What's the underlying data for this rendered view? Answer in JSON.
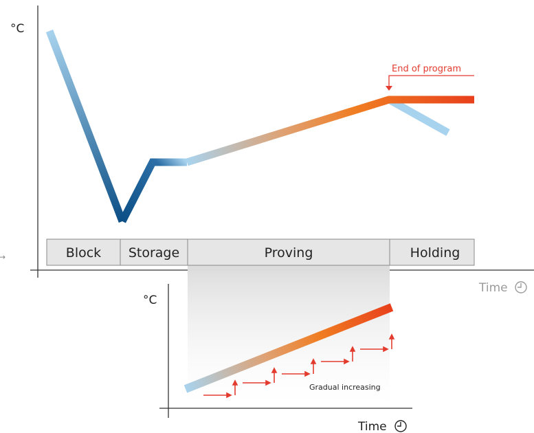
{
  "main_chart": {
    "y_unit": "°C",
    "x_label": "Time",
    "end_of_program": "End of program",
    "phases": [
      {
        "id": "block",
        "label": "Block"
      },
      {
        "id": "storage",
        "label": "Storage"
      },
      {
        "id": "proving",
        "label": "Proving"
      },
      {
        "id": "holding",
        "label": "Holding"
      }
    ]
  },
  "inset_chart": {
    "y_unit": "°C",
    "x_label": "Time",
    "note": "Gradual increasing"
  },
  "colors": {
    "cold_light": "#a8d3ee",
    "cold_dark": "#0c4f86",
    "warm": "#f07d22",
    "hot": "#e8401c",
    "annotation_red": "#e33b2e",
    "axis": "#333333",
    "box_fill": "#e6e6e6",
    "box_stroke": "#888888",
    "muted_text": "#9a9a9a"
  },
  "icons": [
    "clock-icon"
  ]
}
